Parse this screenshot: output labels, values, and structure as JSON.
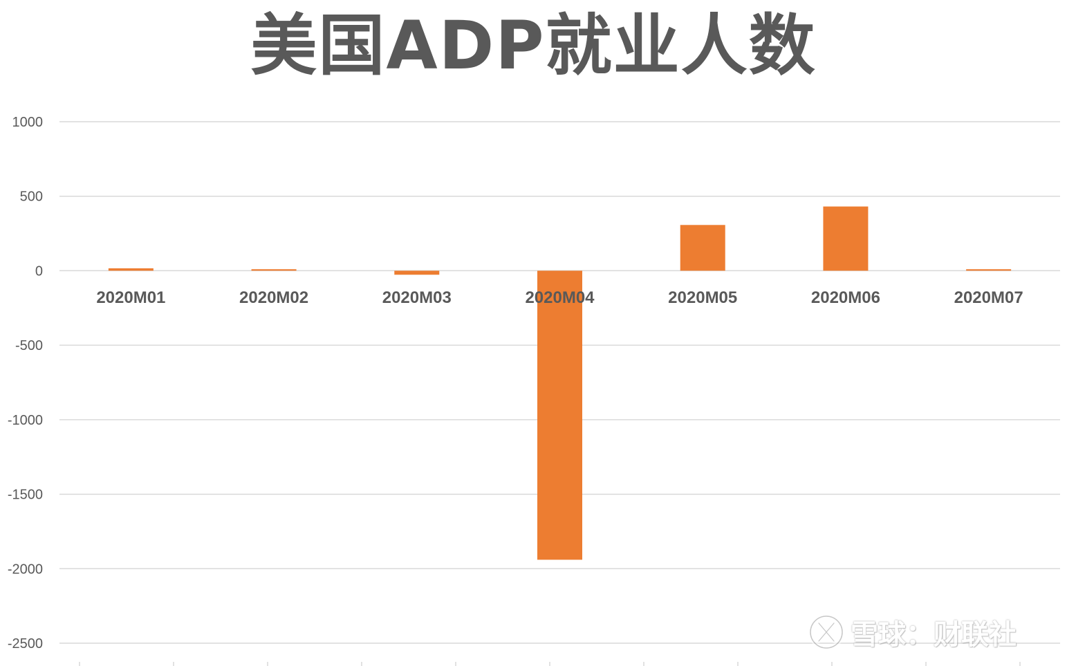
{
  "chart_data": {
    "type": "bar",
    "title": "美国ADP就业人数",
    "categories": [
      "2020M01",
      "2020M02",
      "2020M03",
      "2020M04",
      "2020M05",
      "2020M06",
      "2020M07"
    ],
    "series": [
      {
        "values": [
          16,
          10,
          -27,
          -1940,
          307,
          431,
          10
        ]
      }
    ],
    "ylim": [
      -2500,
      1000
    ],
    "yticks": [
      1000,
      500,
      0,
      -500,
      -1000,
      -1500,
      -2000,
      -2500
    ],
    "grid": true,
    "legend": "none",
    "bar_color": "#ED7D31",
    "grid_color": "#D9D9D9",
    "text_color": "#595959"
  },
  "watermark": {
    "text": "雪球：财联社",
    "icon": "snowball-logo-icon"
  }
}
